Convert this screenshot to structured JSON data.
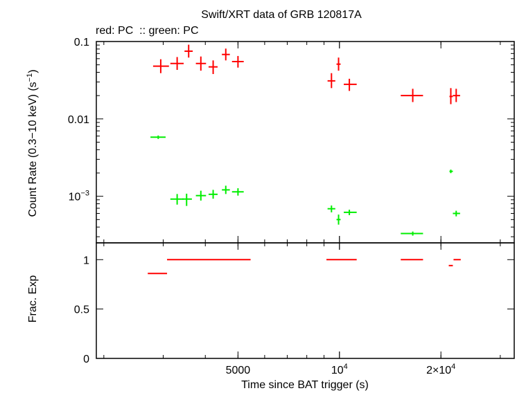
{
  "chart_data": {
    "type": "scatter",
    "title": "Swift/XRT data of GRB 120817A",
    "subtitle": "red: PC  :: green: PC",
    "xlabel": "Time since BAT trigger (s)",
    "x_scale": "log",
    "xlim": [
      1900,
      33000
    ],
    "x_ticks": [
      {
        "value": 5000,
        "label": "5000",
        "exp": ""
      },
      {
        "value": 10000,
        "label": "10",
        "exp": "4"
      },
      {
        "value": 20000,
        "label": "2×10",
        "exp": "4"
      }
    ],
    "panels": [
      {
        "ylabel": "Count Rate (0.3−10 keV) (s",
        "ylabel_exp": "−1",
        "ylabel_tail": ")",
        "y_scale": "log",
        "ylim": [
          0.00025,
          0.1
        ],
        "y_ticks": [
          {
            "value": 0.1,
            "label": "0.1",
            "exp": ""
          },
          {
            "value": 0.01,
            "label": "0.01",
            "exp": ""
          },
          {
            "value": 0.001,
            "label": "10",
            "exp": "−3"
          }
        ],
        "series": [
          {
            "color": "#ff0000",
            "points": [
              {
                "x": 2950,
                "xlo": 2800,
                "xhi": 3120,
                "y": 0.048,
                "ylo": 0.039,
                "yhi": 0.059
              },
              {
                "x": 3300,
                "xlo": 3150,
                "xhi": 3450,
                "y": 0.052,
                "ylo": 0.043,
                "yhi": 0.063
              },
              {
                "x": 3570,
                "xlo": 3470,
                "xhi": 3670,
                "y": 0.075,
                "ylo": 0.062,
                "yhi": 0.091
              },
              {
                "x": 3880,
                "xlo": 3750,
                "xhi": 4020,
                "y": 0.052,
                "ylo": 0.042,
                "yhi": 0.064
              },
              {
                "x": 4220,
                "xlo": 4090,
                "xhi": 4350,
                "y": 0.047,
                "ylo": 0.038,
                "yhi": 0.057
              },
              {
                "x": 4600,
                "xlo": 4480,
                "xhi": 4730,
                "y": 0.068,
                "ylo": 0.057,
                "yhi": 0.081
              },
              {
                "x": 5000,
                "xlo": 4800,
                "xhi": 5200,
                "y": 0.055,
                "ylo": 0.046,
                "yhi": 0.065
              },
              {
                "x": 9470,
                "xlo": 9220,
                "xhi": 9720,
                "y": 0.031,
                "ylo": 0.025,
                "yhi": 0.039
              },
              {
                "x": 9940,
                "xlo": 9800,
                "xhi": 10080,
                "y": 0.051,
                "ylo": 0.042,
                "yhi": 0.062
              },
              {
                "x": 10700,
                "xlo": 10300,
                "xhi": 11250,
                "y": 0.028,
                "ylo": 0.023,
                "yhi": 0.033
              },
              {
                "x": 16500,
                "xlo": 15200,
                "xhi": 17700,
                "y": 0.02,
                "ylo": 0.0165,
                "yhi": 0.0245
              },
              {
                "x": 21400,
                "xlo": 21200,
                "xhi": 21700,
                "y": 0.0195,
                "ylo": 0.0155,
                "yhi": 0.025
              },
              {
                "x": 22200,
                "xlo": 21700,
                "xhi": 22800,
                "y": 0.02,
                "ylo": 0.0165,
                "yhi": 0.0245
              }
            ]
          },
          {
            "color": "#00ee00",
            "points": [
              {
                "x": 2900,
                "xlo": 2750,
                "xhi": 3050,
                "y": 0.0058,
                "ylo": 0.0055,
                "yhi": 0.0061
              },
              {
                "x": 3300,
                "xlo": 3150,
                "xhi": 3450,
                "y": 0.00092,
                "ylo": 0.00078,
                "yhi": 0.00107
              },
              {
                "x": 3520,
                "xlo": 3420,
                "xhi": 3650,
                "y": 0.00092,
                "ylo": 0.00075,
                "yhi": 0.00108
              },
              {
                "x": 3880,
                "xlo": 3750,
                "xhi": 4020,
                "y": 0.00102,
                "ylo": 0.00088,
                "yhi": 0.00118
              },
              {
                "x": 4220,
                "xlo": 4090,
                "xhi": 4350,
                "y": 0.00106,
                "ylo": 0.00093,
                "yhi": 0.00121
              },
              {
                "x": 4600,
                "xlo": 4480,
                "xhi": 4730,
                "y": 0.00121,
                "ylo": 0.00107,
                "yhi": 0.00137
              },
              {
                "x": 5000,
                "xlo": 4800,
                "xhi": 5200,
                "y": 0.00114,
                "ylo": 0.00102,
                "yhi": 0.00127
              },
              {
                "x": 9470,
                "xlo": 9220,
                "xhi": 9720,
                "y": 0.00069,
                "ylo": 0.00062,
                "yhi": 0.00076
              },
              {
                "x": 9940,
                "xlo": 9800,
                "xhi": 10080,
                "y": 0.0005,
                "ylo": 0.00043,
                "yhi": 0.00058
              },
              {
                "x": 10700,
                "xlo": 10300,
                "xhi": 11250,
                "y": 0.00062,
                "ylo": 0.00057,
                "yhi": 0.00067
              },
              {
                "x": 16500,
                "xlo": 15200,
                "xhi": 17700,
                "y": 0.00033,
                "ylo": 0.00031,
                "yhi": 0.00035
              },
              {
                "x": 21400,
                "xlo": 21200,
                "xhi": 21700,
                "y": 0.0021,
                "ylo": 0.00199,
                "yhi": 0.00221
              },
              {
                "x": 22200,
                "xlo": 21700,
                "xhi": 22800,
                "y": 0.0006,
                "ylo": 0.00055,
                "yhi": 0.00065
              }
            ]
          }
        ]
      },
      {
        "ylabel": "Frac. Exp",
        "y_scale": "linear",
        "ylim": [
          0,
          1.17
        ],
        "y_ticks": [
          {
            "value": 0,
            "label": "0"
          },
          {
            "value": 0.5,
            "label": "0.5"
          },
          {
            "value": 1,
            "label": "1"
          }
        ],
        "series": [
          {
            "color": "#ff0000",
            "segments": [
              {
                "xlo": 2700,
                "xhi": 3080,
                "y": 0.86
              },
              {
                "xlo": 3080,
                "xhi": 5450,
                "y": 1.0
              },
              {
                "xlo": 9150,
                "xhi": 11250,
                "y": 1.0
              },
              {
                "xlo": 15200,
                "xhi": 17700,
                "y": 1.0
              },
              {
                "xlo": 21100,
                "xhi": 21700,
                "y": 0.94
              },
              {
                "xlo": 21800,
                "xhi": 22900,
                "y": 1.0
              }
            ]
          }
        ]
      }
    ]
  }
}
